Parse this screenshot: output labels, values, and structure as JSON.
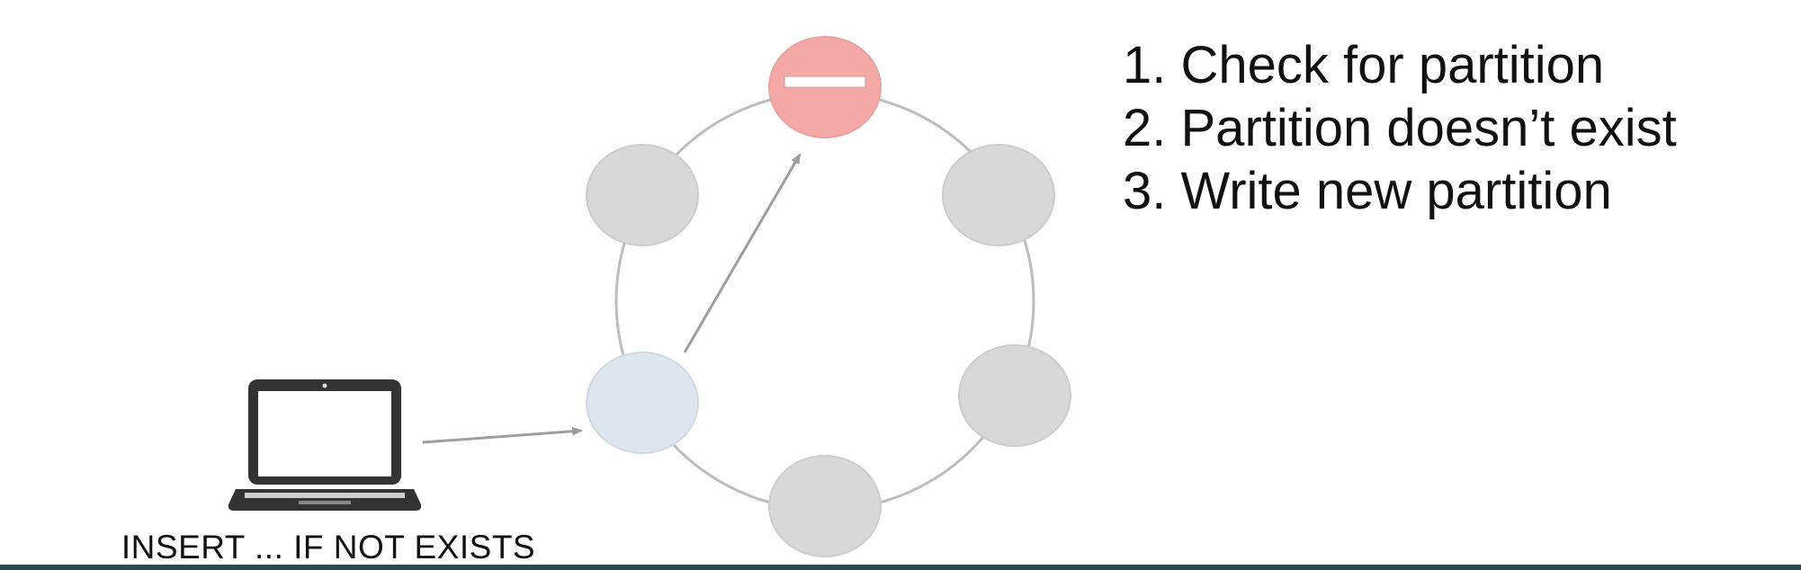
{
  "client": {
    "label": "INSERT ... IF NOT EXISTS",
    "icon": "laptop-icon"
  },
  "steps": [
    {
      "number": "1.",
      "text": "Check for partition"
    },
    {
      "number": "2.",
      "text": "Partition doesn’t exist"
    },
    {
      "number": "3.",
      "text": "Write new partition"
    }
  ],
  "ring": {
    "node_count": 6,
    "nodes": [
      {
        "role": "missing-partition",
        "state": "error",
        "fill": "#f5a9a7",
        "stroke": "#e0a0a0",
        "symbol": "minus-icon"
      },
      {
        "role": "replica",
        "state": "idle",
        "fill": "#d8d8d8",
        "stroke": "#cccccc"
      },
      {
        "role": "replica",
        "state": "idle",
        "fill": "#d8d8d8",
        "stroke": "#cccccc"
      },
      {
        "role": "replica",
        "state": "idle",
        "fill": "#d8d8d8",
        "stroke": "#cccccc"
      },
      {
        "role": "coordinator",
        "state": "active",
        "fill": "#dde6ee",
        "stroke": "#cfd9e2"
      },
      {
        "role": "replica",
        "state": "idle",
        "fill": "#d8d8d8",
        "stroke": "#cccccc"
      }
    ],
    "ring_color": "#bdbdbd",
    "arrow_color": "#9e9e9e"
  }
}
